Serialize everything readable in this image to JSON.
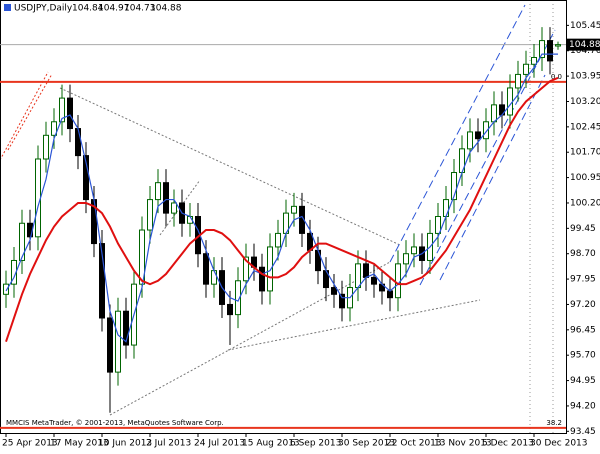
{
  "chart_data": {
    "type": "candlestick",
    "title": "USDJPY,Daily",
    "footer": "MMCIS MetaTrader, © 2001-2013, MetaQuotes Software Corp.",
    "categories": [
      "25 Apr 2013",
      null,
      null,
      null,
      null,
      null,
      "17 May 2013",
      null,
      null,
      null,
      null,
      null,
      "10 Jun 2013",
      null,
      null,
      null,
      null,
      null,
      "2 Jul 2013",
      null,
      null,
      null,
      null,
      null,
      "24 Jul 2013",
      null,
      null,
      null,
      null,
      null,
      "15 Aug 2013",
      null,
      null,
      null,
      null,
      null,
      "6 Sep 2013",
      null,
      null,
      null,
      null,
      null,
      "30 Sep 2013",
      null,
      null,
      null,
      null,
      null,
      "22 Oct 2013",
      null,
      null,
      null,
      null,
      null,
      "13 Nov 2013",
      null,
      null,
      null,
      null,
      null,
      "5 Dec 2013",
      null,
      null,
      null,
      null,
      null,
      "30 Dec 2013",
      null,
      null,
      null
    ],
    "open": [
      97.5,
      97.8,
      98.5,
      99.6,
      99.2,
      101.5,
      102.2,
      102.6,
      103.3,
      102.4,
      101.6,
      100.3,
      99.0,
      96.8,
      95.2,
      97.0,
      96.0,
      97.8,
      99.4,
      100.3,
      100.8,
      99.9,
      100.2,
      99.6,
      99.8,
      98.7,
      97.8,
      98.2,
      97.2,
      96.9,
      97.9,
      98.6,
      98.3,
      97.6,
      98.9,
      99.3,
      99.9,
      100.1,
      99.3,
      98.8,
      98.2,
      97.7,
      97.5,
      97.1,
      97.7,
      98.4,
      98.0,
      97.8,
      97.6,
      97.4,
      98.4,
      98.7,
      98.9,
      98.5,
      99.3,
      99.8,
      100.3,
      101.1,
      101.8,
      102.3,
      102.1,
      102.6,
      103.1,
      102.8,
      103.6,
      104.0,
      104.3,
      104.5,
      105.0,
      104.84
    ],
    "high": [
      98.2,
      98.9,
      100.0,
      100.0,
      101.9,
      102.6,
      103.0,
      103.7,
      103.7,
      102.8,
      102.0,
      100.7,
      99.4,
      97.2,
      97.4,
      97.4,
      98.2,
      99.8,
      100.7,
      101.2,
      101.2,
      100.6,
      100.6,
      100.2,
      100.2,
      99.1,
      98.6,
      98.6,
      97.6,
      98.3,
      99.0,
      99.0,
      98.7,
      99.3,
      99.7,
      100.3,
      100.5,
      100.5,
      99.7,
      99.2,
      98.6,
      98.1,
      97.9,
      98.1,
      98.8,
      98.8,
      98.4,
      98.2,
      98.0,
      98.8,
      99.1,
      99.3,
      99.3,
      99.7,
      100.2,
      100.7,
      101.5,
      102.2,
      102.7,
      102.7,
      103.0,
      103.5,
      103.5,
      104.0,
      104.4,
      104.7,
      104.9,
      105.4,
      105.4,
      104.97
    ],
    "low": [
      97.1,
      97.4,
      98.1,
      98.8,
      98.8,
      101.1,
      101.8,
      102.2,
      102.0,
      101.2,
      99.9,
      98.6,
      96.4,
      94.0,
      94.8,
      95.6,
      95.6,
      97.4,
      99.0,
      99.9,
      99.5,
      99.5,
      99.2,
      99.2,
      98.3,
      97.4,
      97.4,
      96.8,
      96.0,
      96.5,
      97.5,
      97.9,
      97.2,
      97.2,
      98.5,
      98.9,
      99.5,
      98.9,
      98.4,
      97.8,
      97.3,
      97.1,
      96.7,
      96.7,
      97.3,
      97.6,
      97.4,
      97.2,
      97.0,
      97.0,
      98.0,
      98.3,
      98.1,
      98.1,
      98.9,
      99.4,
      99.9,
      100.7,
      101.4,
      101.7,
      101.7,
      102.2,
      102.4,
      102.4,
      103.2,
      103.6,
      103.9,
      104.1,
      104.0,
      104.73
    ],
    "close": [
      97.8,
      98.5,
      99.6,
      99.2,
      101.5,
      102.2,
      102.6,
      103.3,
      102.4,
      101.6,
      100.3,
      99.0,
      96.8,
      95.2,
      97.0,
      96.0,
      97.8,
      99.4,
      100.3,
      100.8,
      99.9,
      100.2,
      99.6,
      99.8,
      98.7,
      97.8,
      98.2,
      97.2,
      96.9,
      97.9,
      98.6,
      98.3,
      97.6,
      98.9,
      99.3,
      99.9,
      100.1,
      99.3,
      98.8,
      98.2,
      97.7,
      97.5,
      97.1,
      97.7,
      98.4,
      98.0,
      97.8,
      97.6,
      97.4,
      98.4,
      98.7,
      98.9,
      98.5,
      99.3,
      99.8,
      100.3,
      101.1,
      101.8,
      102.3,
      102.1,
      102.6,
      103.1,
      102.8,
      103.6,
      104.0,
      104.3,
      104.5,
      105.0,
      104.4,
      104.88
    ],
    "up_color": "#006400",
    "down_color": "#000000",
    "series": [
      {
        "color": "#2b55d6",
        "values": [
          97.6,
          98.0,
          98.6,
          99.1,
          100.1,
          100.9,
          102.1,
          102.7,
          102.8,
          102.4,
          101.4,
          100.3,
          98.7,
          97.0,
          96.3,
          96.1,
          96.9,
          97.7,
          99.1,
          100.1,
          100.3,
          100.3,
          99.9,
          99.8,
          99.4,
          98.8,
          98.2,
          97.7,
          97.4,
          97.3,
          97.8,
          98.2,
          98.1,
          98.2,
          98.6,
          99.3,
          99.7,
          99.8,
          99.4,
          98.8,
          98.2,
          97.8,
          97.4,
          97.4,
          97.7,
          98.0,
          98.1,
          97.8,
          97.6,
          97.8,
          98.1,
          98.6,
          98.7,
          98.9,
          99.2,
          99.8,
          100.4,
          101.1,
          101.7,
          102.0,
          102.3,
          102.6,
          102.8,
          103.1,
          103.4,
          103.9,
          104.2,
          104.6,
          104.6,
          104.6
        ]
      },
      {
        "color": "#e01010",
        "values": [
          96.1,
          96.8,
          97.5,
          98.1,
          98.6,
          99.1,
          99.5,
          99.8,
          100.0,
          100.2,
          100.2,
          100.1,
          99.9,
          99.5,
          99.0,
          98.6,
          98.2,
          97.9,
          97.8,
          97.9,
          98.1,
          98.4,
          98.7,
          99.0,
          99.2,
          99.4,
          99.4,
          99.3,
          99.1,
          98.8,
          98.5,
          98.3,
          98.1,
          98.0,
          98.0,
          98.1,
          98.3,
          98.6,
          98.8,
          99.0,
          99.0,
          98.9,
          98.8,
          98.7,
          98.6,
          98.5,
          98.4,
          98.2,
          98.0,
          97.8,
          97.8,
          97.9,
          98.0,
          98.2,
          98.5,
          98.8,
          99.2,
          99.6,
          100.0,
          100.5,
          101.0,
          101.5,
          102.0,
          102.5,
          102.9,
          103.2,
          103.4,
          103.6,
          103.8,
          103.9
        ]
      }
    ],
    "levels": [
      {
        "value": 103.78,
        "label": "0.0"
      },
      {
        "value": 93.55,
        "label": "38.2"
      }
    ],
    "level_color": "#e8351e",
    "ylim": [
      93.4,
      106.2
    ],
    "yticks": [
      105.45,
      {
        "value": 104.7,
        "label": "104.70"
      },
      103.95,
      {
        "value": 103.2,
        "label": "103.20"
      },
      102.45,
      {
        "value": 101.7,
        "label": "101.70"
      },
      100.95,
      {
        "value": 100.2,
        "label": "100.20"
      },
      99.45,
      {
        "value": 98.7,
        "label": "98.70"
      },
      97.95,
      {
        "value": 97.2,
        "label": "97.20"
      },
      96.45,
      {
        "value": 95.7,
        "label": "95.70"
      },
      94.95,
      {
        "value": 94.2,
        "label": "94.20"
      },
      93.45
    ],
    "grid": false
  }
}
